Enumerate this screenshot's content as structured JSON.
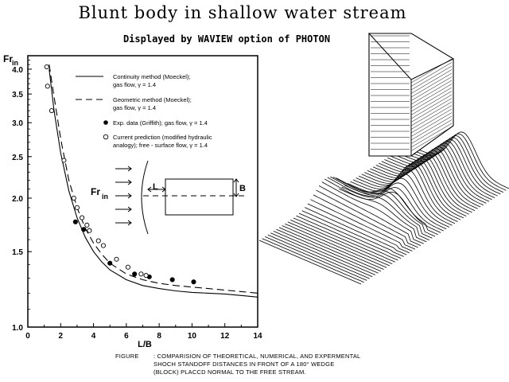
{
  "header": {
    "title": "Blunt body in shallow water stream",
    "subtitle": "Displayed by WAVIEW option of PHOTON"
  },
  "caption": {
    "label": "FIGURE",
    "lines": [
      ": COMPARISION OF THEORETICAL, NUMERICAL, AND EXPERMENTAL",
      "SHOCH STANDOFF DISTANCES IN FRONT OF A 180° WEDGE",
      "(BLOCK) PLACCD NORMAL TO THE FREE STREAM."
    ]
  },
  "inset": {
    "fr_label": "Fr",
    "fr_sub": "in",
    "L": "L",
    "B": "B"
  },
  "chart_data": {
    "type": "scatter",
    "xlabel": "L/B",
    "ylabel": "Fr",
    "ylabel_sub": "in",
    "xlim": [
      0,
      14
    ],
    "ylim": [
      1.0,
      4.3
    ],
    "y_scale": "log",
    "x_ticks": [
      0,
      2,
      4,
      6,
      8,
      10,
      12,
      14
    ],
    "y_ticks": [
      1.0,
      1.5,
      2.0,
      2.5,
      3.0,
      3.5,
      4.0
    ],
    "legend": [
      {
        "style": "solid",
        "label_lines": [
          "Continuity method (Moeckel);",
          "gas flow,  γ = 1.4"
        ]
      },
      {
        "style": "dashed",
        "label_lines": [
          "Geometric method (Moeckel);",
          "gas flow,  γ = 1.4"
        ]
      },
      {
        "style": "filled",
        "label_lines": [
          "Exp. data (Griffith); gas flow,  γ = 1.4"
        ]
      },
      {
        "style": "open",
        "label_lines": [
          "Current prediction (modified hydraulic",
          "analogy); free - surface flow,  γ = 1.4"
        ]
      }
    ],
    "series": [
      {
        "name": "Continuity method (Moeckel); gas flow, γ = 1.4",
        "style": "solid",
        "x": [
          1.3,
          1.6,
          2.0,
          2.5,
          3.0,
          3.5,
          4.0,
          4.5,
          5.0,
          6.0,
          7.0,
          8.0,
          9.0,
          10.0,
          11.0,
          12.0,
          13.0,
          14.0
        ],
        "y": [
          4.0,
          3.2,
          2.55,
          2.08,
          1.8,
          1.62,
          1.5,
          1.42,
          1.36,
          1.29,
          1.25,
          1.23,
          1.215,
          1.205,
          1.2,
          1.195,
          1.185,
          1.175
        ]
      },
      {
        "name": "Geometric method (Moeckel); gas flow, γ = 1.4",
        "style": "dashed",
        "x": [
          1.3,
          1.6,
          2.0,
          2.5,
          3.0,
          3.5,
          4.0,
          4.5,
          5.0,
          6.0,
          7.0,
          8.0,
          9.0,
          10.0,
          11.0,
          12.0,
          13.0,
          14.0
        ],
        "y": [
          4.1,
          3.45,
          2.75,
          2.2,
          1.9,
          1.7,
          1.57,
          1.48,
          1.41,
          1.33,
          1.29,
          1.265,
          1.25,
          1.24,
          1.23,
          1.22,
          1.21,
          1.2
        ]
      },
      {
        "name": "Exp. data (Griffith); gas flow, γ = 1.4",
        "style": "filled",
        "x": [
          2.9,
          3.4,
          5.0,
          6.5,
          7.4,
          8.8,
          10.1
        ],
        "y": [
          1.76,
          1.69,
          1.41,
          1.33,
          1.31,
          1.29,
          1.275
        ]
      },
      {
        "name": "Current prediction (modified hydraulic analogy); free - surface flow, γ = 1.4",
        "style": "open",
        "x": [
          1.15,
          1.2,
          1.45,
          2.2,
          2.8,
          3.0,
          3.3,
          3.6,
          3.75,
          4.3,
          4.6,
          5.4,
          6.1,
          6.9,
          7.2
        ],
        "y": [
          4.05,
          3.65,
          3.2,
          2.45,
          2.0,
          1.9,
          1.8,
          1.73,
          1.68,
          1.59,
          1.55,
          1.44,
          1.38,
          1.33,
          1.32
        ]
      }
    ]
  }
}
